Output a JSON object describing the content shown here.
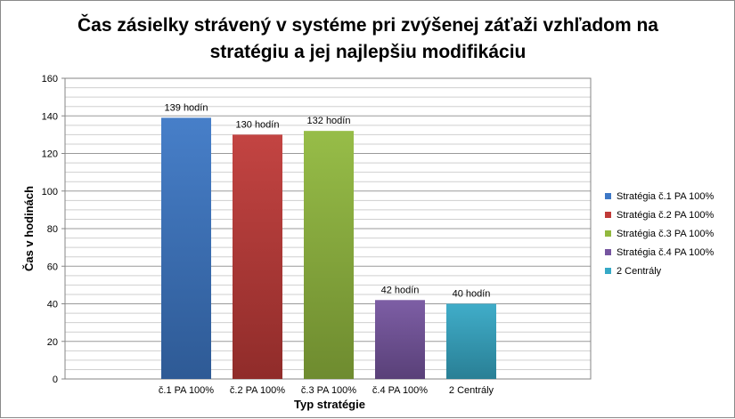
{
  "chart_data": {
    "type": "bar",
    "title": [
      "Čas zásielky strávený v systéme  pri zvýšenej záťaži vzhľadom na",
      "stratégiu a jej najlepšiu modifikáciu"
    ],
    "xlabel": "Typ stratégie",
    "ylabel": "Čas v hodinách",
    "categories": [
      "č.1 PA 100%",
      "č.2 PA 100%",
      "č.3 PA 100%",
      "č.4 PA 100%",
      "2 Centrály"
    ],
    "values": [
      139,
      130,
      132,
      42,
      40
    ],
    "data_labels": [
      "139 hodín",
      "130 hodín",
      "132 hodín",
      "42 hodín",
      "40 hodín"
    ],
    "ylim": [
      0,
      160
    ],
    "yticks": [
      0,
      20,
      40,
      60,
      80,
      100,
      120,
      140,
      160
    ],
    "grid": true,
    "legend_position": "right",
    "series": [
      {
        "name": "Stratégia č.1 PA 100%",
        "color": "#3d78c6",
        "value": 139
      },
      {
        "name": "Stratégia č.2 PA 100%",
        "color": "#c03a38",
        "value": 130
      },
      {
        "name": "Stratégia č.3 PA 100%",
        "color": "#92b93e",
        "value": 132
      },
      {
        "name": "Stratégia č.4 PA 100%",
        "color": "#7655a0",
        "value": 42
      },
      {
        "name": "2 Centrály",
        "color": "#36a9c6",
        "value": 40
      }
    ]
  }
}
